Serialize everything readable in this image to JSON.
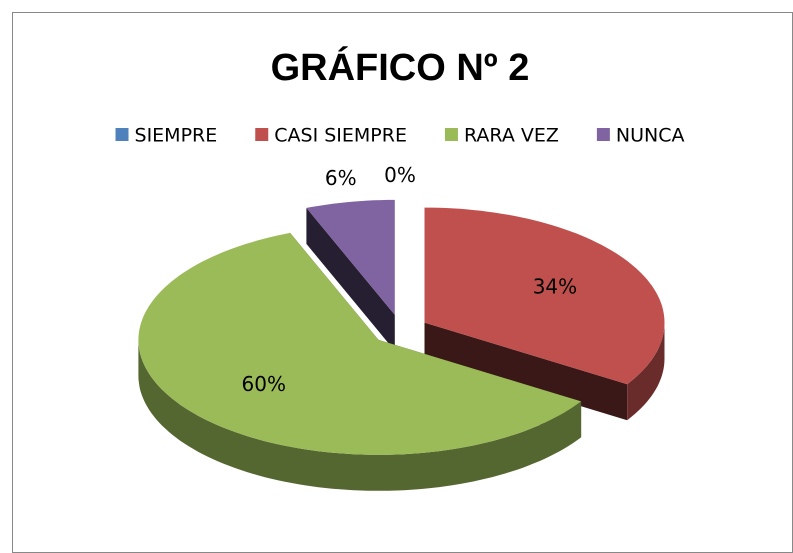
{
  "chart_data": {
    "type": "pie3d",
    "title": "GRÁFICO Nº 2",
    "categories": [
      "SIEMPRE",
      "CASI SIEMPRE",
      "RARA VEZ",
      "NUNCA"
    ],
    "values": [
      0,
      34,
      60,
      6
    ],
    "value_labels": [
      "0%",
      "34%",
      "60%",
      "6%"
    ],
    "colors": [
      "#4f81bd",
      "#c0504d",
      "#9bbb59",
      "#8064a2"
    ],
    "legend": "top",
    "exploded": true
  }
}
